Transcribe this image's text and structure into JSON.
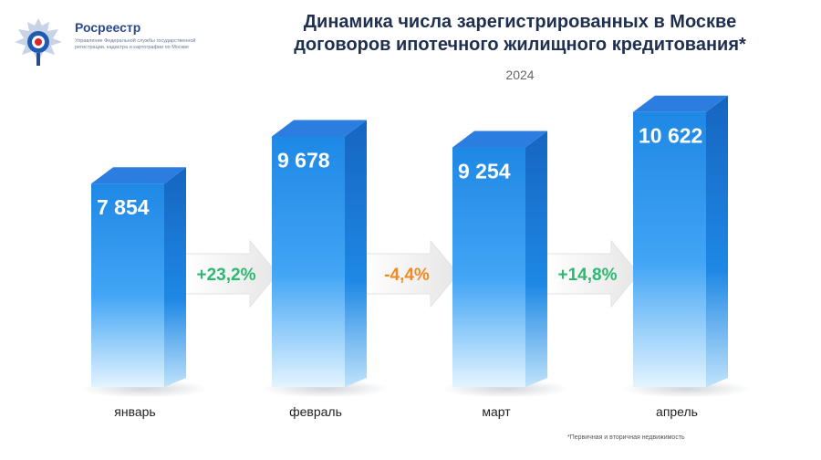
{
  "header": {
    "brand_name": "Росреестр",
    "brand_subtitle": "Управление Федеральной службы государственной регистрации, кадастра и картографии по Москве",
    "title_line1": "Динамика числа зарегистрированных в Москве",
    "title_line2": "договоров ипотечного жилищного кредитования*",
    "year": "2024"
  },
  "footnote": "*Первичная и вторичная недвижимость",
  "colors": {
    "bar_top": "#1e88e5",
    "bar_bottom": "#e3f4ff",
    "bar_side": "#1565c0",
    "bar_cap": "#2b7de0",
    "positive": "#2eb872",
    "negative": "#f08a24",
    "arrow_fill": "#f3f3f3"
  },
  "chart_data": {
    "type": "bar",
    "categories": [
      "январь",
      "февраль",
      "март",
      "апрель"
    ],
    "values": [
      7854,
      9678,
      9254,
      10622
    ],
    "value_labels": [
      "7 854",
      "9 678",
      "9 254",
      "10 622"
    ],
    "changes": [
      {
        "label": "+23,2%",
        "sign": "positive"
      },
      {
        "label": "-4,4%",
        "sign": "negative"
      },
      {
        "label": "+14,8%",
        "sign": "positive"
      }
    ],
    "title": "Динамика числа зарегистрированных в Москве договоров ипотечного жилищного кредитования*",
    "subtitle": "2024",
    "xlabel": "",
    "ylabel": "",
    "ylim": [
      0,
      11000
    ],
    "grid": false,
    "legend": "none"
  }
}
